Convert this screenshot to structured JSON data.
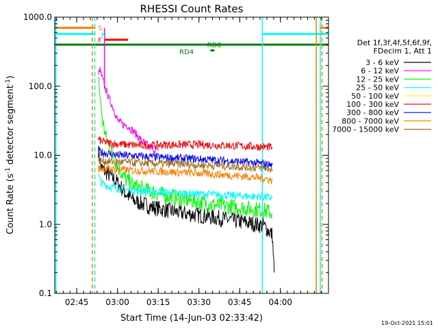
{
  "chart_data": {
    "type": "line",
    "title": "RHESSI Count Rates",
    "xlabel": "Start Time (14-Jun-03 02:33:42)",
    "ylabel_main": "Count Rate (s",
    "ylabel_sup1": "-1",
    "ylabel_mid": " detector segment",
    "ylabel_sup2": "-1",
    "ylabel_end": ")",
    "yscale": "log",
    "ylim": [
      0.1,
      1000
    ],
    "xlim_min": [
      2.615,
      4.295
    ],
    "y_ticks": [
      {
        "v": 0.1,
        "label": "0.1"
      },
      {
        "v": 1,
        "label": "1.0"
      },
      {
        "v": 10,
        "label": "10.0"
      },
      {
        "v": 100,
        "label": "100.0"
      },
      {
        "v": 1000,
        "label": "1000.0"
      }
    ],
    "x_ticks": [
      {
        "v": 2.75,
        "label": "02:45"
      },
      {
        "v": 3.0,
        "label": "03:00"
      },
      {
        "v": 3.25,
        "label": "03:15"
      },
      {
        "v": 3.5,
        "label": "03:30"
      },
      {
        "v": 3.75,
        "label": "03:45"
      },
      {
        "v": 4.0,
        "label": "04:00"
      }
    ],
    "legend_header": [
      "Det 1f,3f,4f,5f,6f,9f,",
      "FDecim 1, Att 1"
    ],
    "series": [
      {
        "name": "3 - 6 keV",
        "color": "#000000",
        "points": [
          [
            2.883,
            12
          ],
          [
            2.9,
            6.5
          ],
          [
            2.95,
            5.2
          ],
          [
            3.0,
            4
          ],
          [
            3.05,
            2.8
          ],
          [
            3.1,
            2.2
          ],
          [
            3.2,
            1.8
          ],
          [
            3.3,
            1.6
          ],
          [
            3.4,
            1.45
          ],
          [
            3.5,
            1.35
          ],
          [
            3.6,
            1.25
          ],
          [
            3.7,
            1.15
          ],
          [
            3.8,
            1.05
          ],
          [
            3.9,
            0.95
          ],
          [
            3.95,
            0.7
          ],
          [
            3.962,
            0.2
          ]
        ]
      },
      {
        "name": "6 - 12 keV",
        "color": "#ff00ff",
        "points": [
          [
            2.883,
            140
          ],
          [
            2.89,
            180
          ],
          [
            2.92,
            100
          ],
          [
            2.95,
            65
          ],
          [
            2.98,
            45
          ],
          [
            3.0,
            32
          ],
          [
            3.03,
            28
          ],
          [
            3.06,
            27
          ],
          [
            3.1,
            22
          ],
          [
            3.15,
            16
          ],
          [
            3.2,
            13
          ],
          [
            3.25,
            11.5
          ]
        ]
      },
      {
        "name": "12 - 25 keV",
        "color": "#00ff00",
        "points": [
          [
            2.883,
            160
          ],
          [
            2.895,
            60
          ],
          [
            2.91,
            30
          ],
          [
            2.93,
            18
          ],
          [
            2.96,
            12
          ],
          [
            3.0,
            7
          ],
          [
            3.05,
            4.5
          ],
          [
            3.1,
            3.6
          ],
          [
            3.2,
            3.0
          ],
          [
            3.3,
            2.6
          ],
          [
            3.4,
            2.3
          ],
          [
            3.5,
            2.1
          ],
          [
            3.6,
            1.9
          ],
          [
            3.7,
            1.8
          ],
          [
            3.8,
            1.7
          ],
          [
            3.9,
            1.6
          ],
          [
            3.95,
            1.45
          ]
        ]
      },
      {
        "name": "25 - 50 keV",
        "color": "#00ffff",
        "points": [
          [
            2.883,
            5.0
          ],
          [
            2.9,
            4.0
          ],
          [
            2.95,
            3.5
          ],
          [
            3.0,
            3.3
          ],
          [
            3.1,
            3.1
          ],
          [
            3.2,
            3.0
          ],
          [
            3.3,
            2.9
          ],
          [
            3.4,
            2.8
          ],
          [
            3.5,
            2.75
          ],
          [
            3.6,
            2.7
          ],
          [
            3.7,
            2.6
          ],
          [
            3.8,
            2.55
          ],
          [
            3.9,
            2.5
          ],
          [
            3.95,
            2.4
          ]
        ]
      },
      {
        "name": "50 - 100 keV",
        "color": "#ffff00",
        "points": []
      },
      {
        "name": "100 - 300 keV",
        "color": "#ff0000",
        "points": [
          [
            2.883,
            17
          ],
          [
            2.9,
            16
          ],
          [
            2.95,
            15
          ],
          [
            3.0,
            14.5
          ],
          [
            3.1,
            14
          ],
          [
            3.2,
            14
          ],
          [
            3.3,
            14.2
          ],
          [
            3.4,
            14.2
          ],
          [
            3.5,
            14.3
          ],
          [
            3.6,
            14.0
          ],
          [
            3.7,
            13.8
          ],
          [
            3.8,
            13.5
          ],
          [
            3.9,
            13.2
          ],
          [
            3.95,
            13.0
          ]
        ]
      },
      {
        "name": "300 - 800 keV",
        "color": "#0000ff",
        "points": [
          [
            2.883,
            11.5
          ],
          [
            2.9,
            11
          ],
          [
            2.95,
            10.5
          ],
          [
            3.0,
            10
          ],
          [
            3.1,
            9.8
          ],
          [
            3.2,
            9.5
          ],
          [
            3.3,
            9.2
          ],
          [
            3.4,
            9.0
          ],
          [
            3.5,
            8.8
          ],
          [
            3.6,
            8.5
          ],
          [
            3.7,
            8.2
          ],
          [
            3.8,
            7.9
          ],
          [
            3.9,
            7.5
          ],
          [
            3.95,
            7.2
          ]
        ]
      },
      {
        "name": "800 - 7000 keV",
        "color": "#ff8000",
        "points": [
          [
            2.883,
            6.5
          ],
          [
            2.9,
            6.4
          ],
          [
            2.95,
            6.3
          ],
          [
            3.0,
            6.2
          ],
          [
            3.1,
            6.0
          ],
          [
            3.2,
            5.9
          ],
          [
            3.3,
            5.8
          ],
          [
            3.4,
            5.6
          ],
          [
            3.5,
            5.5
          ],
          [
            3.6,
            5.3
          ],
          [
            3.7,
            5.1
          ],
          [
            3.8,
            4.9
          ],
          [
            3.9,
            4.6
          ],
          [
            3.95,
            4.3
          ]
        ]
      },
      {
        "name": "7000 - 15000 keV",
        "color": "#a07020",
        "points": [
          [
            2.883,
            8.5
          ],
          [
            2.9,
            8.3
          ],
          [
            2.95,
            8.1
          ],
          [
            3.0,
            8.0
          ],
          [
            3.1,
            7.8
          ],
          [
            3.2,
            7.6
          ],
          [
            3.3,
            7.5
          ],
          [
            3.4,
            7.4
          ],
          [
            3.5,
            7.2
          ],
          [
            3.6,
            7.1
          ],
          [
            3.7,
            6.9
          ],
          [
            3.8,
            6.7
          ],
          [
            3.9,
            6.5
          ],
          [
            3.95,
            6.3
          ]
        ]
      }
    ],
    "annotations": {
      "flags": [
        {
          "label": "S",
          "color": "#ff8000",
          "x": 2.88,
          "y": 700
        },
        {
          "label": "N",
          "color": "#00ffff",
          "x": 2.9,
          "y": 560
        },
        {
          "label": "F",
          "color": "#ff0000",
          "x": 2.88,
          "y": 470
        },
        {
          "label": "RD0",
          "color": "#008000",
          "x": 3.55,
          "y": 400
        },
        {
          "label": "RD4",
          "color": "#008000",
          "x": 3.38,
          "y": 320
        }
      ],
      "bars": [
        {
          "color": "#ff8000",
          "x0": 2.615,
          "x1": 2.865,
          "y": 700
        },
        {
          "color": "#00ffff",
          "x0": 2.615,
          "x1": 2.865,
          "y": 570
        },
        {
          "color": "#ff0000",
          "x0": 2.92,
          "x1": 3.065,
          "y": 470
        },
        {
          "color": "#008000",
          "x0": 2.615,
          "x1": 4.295,
          "y": 400
        },
        {
          "color": "#008000",
          "x0": 3.57,
          "x1": 3.595,
          "y": 330
        },
        {
          "color": "#00ffff",
          "x0": 3.89,
          "x1": 4.295,
          "y": 570
        },
        {
          "color": "#ff8000",
          "x0": 4.24,
          "x1": 4.295,
          "y": 700
        }
      ],
      "vlines": [
        {
          "color": "#ff8000",
          "x": 2.845,
          "dash": true
        },
        {
          "color": "#00ffff",
          "x": 2.86,
          "dash": true
        },
        {
          "color": "#00ffff",
          "x": 3.89,
          "dash": false
        },
        {
          "color": "#ff8000",
          "x": 4.22,
          "dash": false
        },
        {
          "color": "#00ffff",
          "x": 4.245,
          "dash": false
        },
        {
          "color": "#ff8000",
          "x": 4.255,
          "dash": true
        },
        {
          "color": "#ff00ff",
          "x": 2.92,
          "dash": false
        },
        {
          "color": "#00ffff",
          "x": 2.622,
          "dash": false
        }
      ]
    }
  },
  "footer": {
    "timestamp": "19-Oct-2021 15:01"
  }
}
